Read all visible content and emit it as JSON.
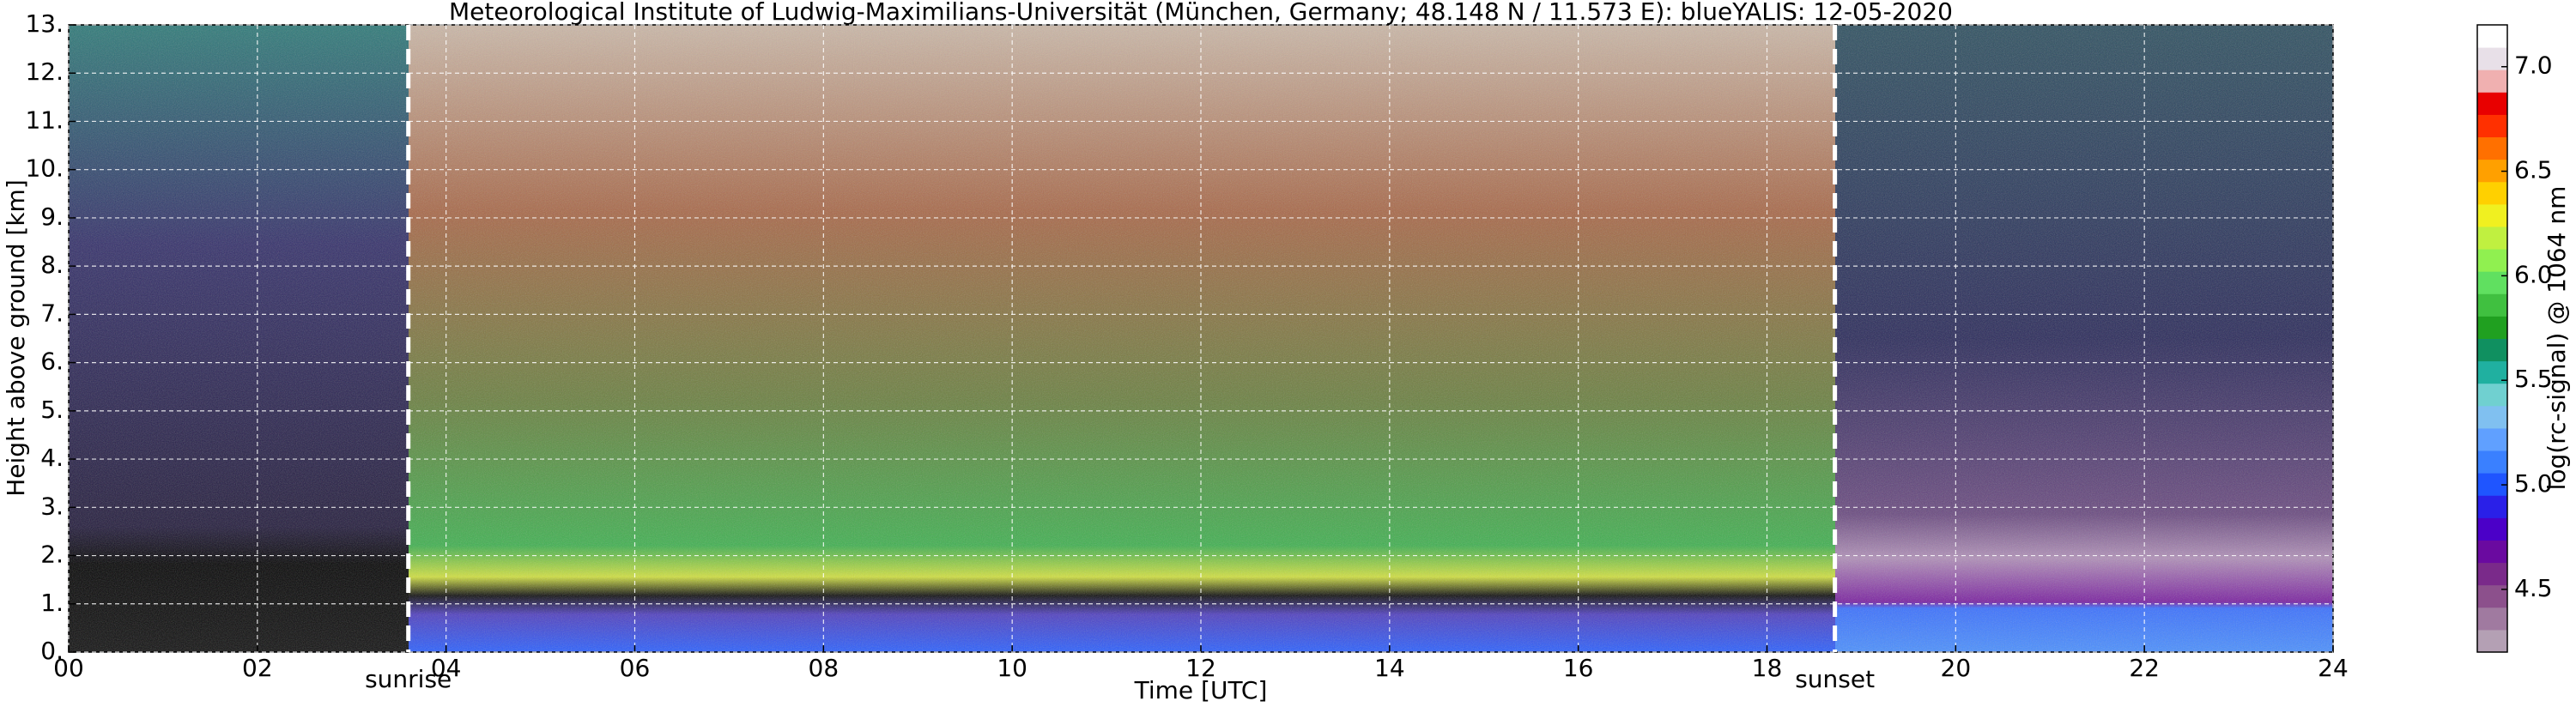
{
  "chart_data": {
    "type": "heatmap",
    "title": "Meteorological Institute of Ludwig-Maximilians-Universität (München, Germany; 48.148 N / 11.573 E):    blueYALIS: 12-05-2020",
    "x_label": "Time [UTC]",
    "y_label": "Height above ground [km]",
    "colorbar_label": "log(rc-signal) @ 1064 nm",
    "xlim": [
      0,
      24
    ],
    "xticks": [
      {
        "value": 0,
        "label": "00"
      },
      {
        "value": 2,
        "label": "02"
      },
      {
        "value": 4,
        "label": "04"
      },
      {
        "value": 6,
        "label": "06"
      },
      {
        "value": 8,
        "label": "08"
      },
      10,
      12,
      14,
      16,
      18,
      20,
      22,
      24
    ],
    "ylim": [
      0,
      13
    ],
    "yticks": [
      {
        "value": 0,
        "label": "0."
      },
      {
        "value": 1,
        "label": "1."
      },
      {
        "value": 2,
        "label": "2."
      },
      {
        "value": 3,
        "label": "3."
      },
      {
        "value": 4,
        "label": "4."
      },
      {
        "value": 5,
        "label": "5."
      },
      {
        "value": 6,
        "label": "6."
      },
      {
        "value": 7,
        "label": "7."
      },
      {
        "value": 8,
        "label": "8."
      },
      {
        "value": 9,
        "label": "9."
      },
      {
        "value": 10,
        "label": "10."
      },
      {
        "value": 11,
        "label": "11."
      },
      {
        "value": 12,
        "label": "12."
      },
      {
        "value": 13,
        "label": "13."
      }
    ],
    "clim": [
      4.2,
      7.2
    ],
    "cticks": [
      4.5,
      5.0,
      5.5,
      6.0,
      6.5,
      7.0
    ],
    "colorbar_colors": [
      "#b4a0b4",
      "#a07aa0",
      "#8c508c",
      "#7a2a8a",
      "#6a0aa0",
      "#4b00c8",
      "#2a20e8",
      "#1f55ff",
      "#3a80ff",
      "#60a0ff",
      "#80c0f0",
      "#70d0d0",
      "#20b0a0",
      "#109060",
      "#20a020",
      "#40c040",
      "#60e060",
      "#90f050",
      "#c0f040",
      "#f0f020",
      "#ffd000",
      "#ffa000",
      "#ff7000",
      "#ff3000",
      "#e80000",
      "#f0b0b0",
      "#e8e0e8",
      "#ffffff"
    ],
    "grid": true,
    "annotations": [
      {
        "text": "sunrise",
        "x": 3.6
      },
      {
        "text": "sunset",
        "x": 18.72
      }
    ]
  }
}
